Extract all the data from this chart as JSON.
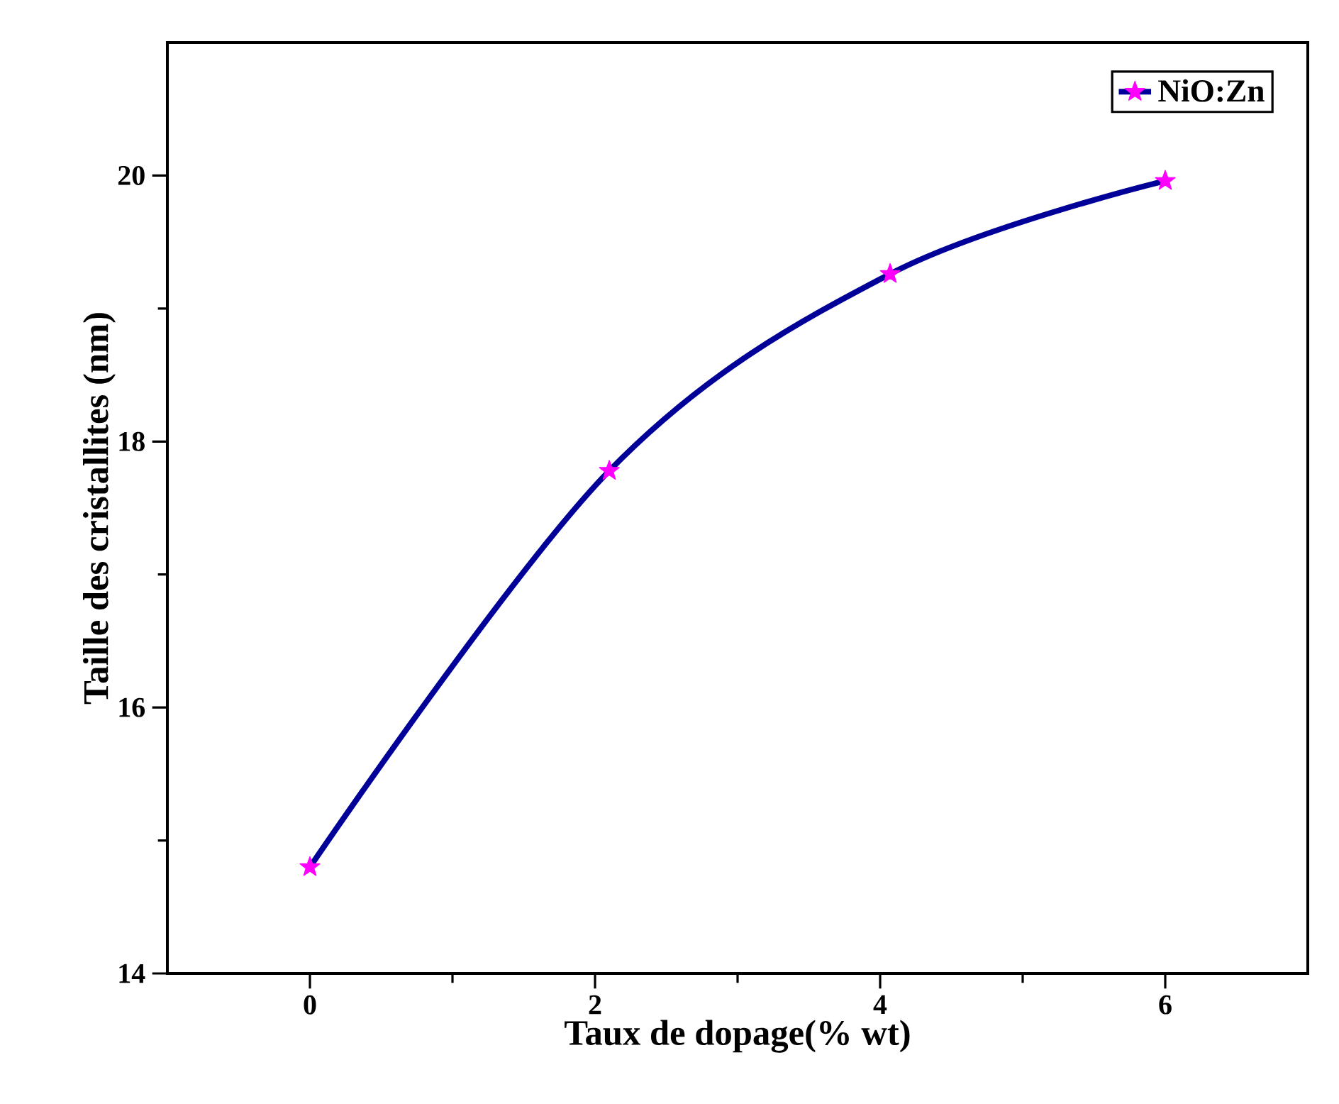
{
  "chart_data": {
    "type": "line",
    "xlabel": "Taux de dopage(% wt)",
    "ylabel": "Taille des cristallites (nm)",
    "x": [
      0,
      2.1,
      4.07,
      6
    ],
    "series": [
      {
        "name": "NiO:Zn",
        "color": "#000099",
        "colors": [
          "#ff00ff",
          "#ff00ff",
          "#ff00ff",
          "#ff00ff"
        ],
        "values": [
          14.8,
          17.78,
          19.26,
          19.96
        ]
      }
    ],
    "xlim": [
      -1,
      7
    ],
    "ylim": [
      14,
      21
    ],
    "xticks": [
      0,
      2,
      4,
      6
    ],
    "yticks": [
      14,
      16,
      18,
      20
    ],
    "marker": "star",
    "line_style": "solid",
    "legend": "top right",
    "grid": false
  }
}
